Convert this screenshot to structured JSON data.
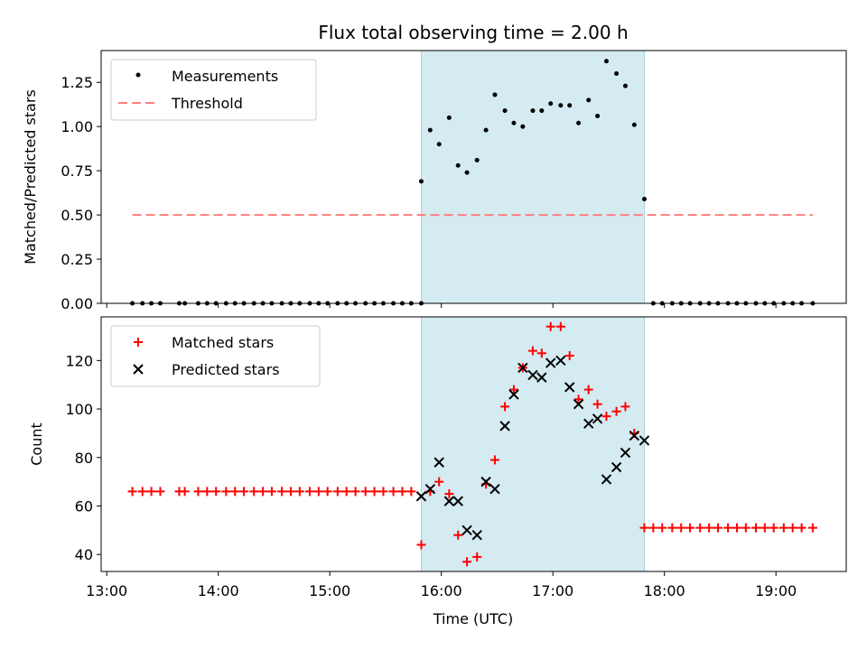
{
  "chart_data": {
    "title": "Flux total observing time = 2.00 h",
    "xlabel": "Time (UTC)",
    "x_tick_labels": [
      "13:00",
      "14:00",
      "15:00",
      "16:00",
      "17:00",
      "18:00",
      "19:00"
    ],
    "x_ticks_hours": [
      13,
      14,
      15,
      16,
      17,
      18,
      19
    ],
    "xlim_hours": [
      12.95,
      19.63
    ],
    "shaded_span_hours": [
      15.82,
      17.82
    ],
    "colors": {
      "measurements": "#000000",
      "threshold": "#ff7f7f",
      "matched": "#ff0000",
      "predicted": "#000000",
      "span_fill": "#d4ebf1",
      "span_edge": "#a6d3e0"
    },
    "top_panel": {
      "type": "scatter",
      "ylabel": "Matched/Predicted stars",
      "ylim": [
        0,
        1.43
      ],
      "y_ticks": [
        0,
        0.25,
        0.5,
        0.75,
        1.0,
        1.25
      ],
      "y_tick_labels": [
        "0.00",
        "0.25",
        "0.50",
        "0.75",
        "1.00",
        "1.25"
      ],
      "legend": {
        "placement": "top-left",
        "entries": [
          "Measurements",
          "Threshold"
        ]
      },
      "threshold": {
        "name": "Threshold",
        "y": 0.5,
        "x_range_hours": [
          13.23,
          19.33
        ]
      },
      "measurements_inside": {
        "name": "Measurements",
        "x_hours": [
          15.82,
          15.9,
          15.98,
          16.07,
          16.15,
          16.23,
          16.32,
          16.4,
          16.48,
          16.57,
          16.65,
          16.73,
          16.82,
          16.9,
          16.98,
          17.07,
          17.15,
          17.23,
          17.32,
          17.4,
          17.48,
          17.57,
          17.65,
          17.73,
          17.82
        ],
        "y": [
          0.69,
          0.98,
          0.9,
          1.05,
          0.78,
          0.74,
          0.81,
          0.98,
          1.18,
          1.09,
          1.02,
          1.0,
          1.09,
          1.09,
          1.13,
          1.12,
          1.12,
          1.02,
          1.15,
          1.06,
          1.37,
          1.3,
          1.23,
          1.01,
          0.59
        ]
      },
      "measurements_zero": {
        "y": 0,
        "x_hours": [
          13.23,
          13.32,
          13.4,
          13.48,
          13.65,
          13.7,
          13.82,
          13.9,
          13.98,
          14.07,
          14.15,
          14.23,
          14.32,
          14.4,
          14.48,
          14.57,
          14.65,
          14.73,
          14.82,
          14.9,
          14.98,
          15.07,
          15.15,
          15.23,
          15.32,
          15.4,
          15.48,
          15.57,
          15.65,
          15.73,
          15.82,
          17.9,
          17.98,
          18.07,
          18.15,
          18.23,
          18.32,
          18.4,
          18.48,
          18.57,
          18.65,
          18.73,
          18.82,
          18.9,
          18.98,
          19.07,
          19.15,
          19.23,
          19.33
        ]
      }
    },
    "bottom_panel": {
      "type": "scatter",
      "ylabel": "Count",
      "ylim": [
        33,
        138
      ],
      "y_ticks": [
        40,
        60,
        80,
        100,
        120
      ],
      "y_tick_labels": [
        "40",
        "60",
        "80",
        "100",
        "120"
      ],
      "legend": {
        "placement": "top-left",
        "entries": [
          "Matched stars",
          "Predicted stars"
        ]
      },
      "matched_before": {
        "y": 66,
        "x_hours": [
          13.23,
          13.32,
          13.4,
          13.48,
          13.65,
          13.7,
          13.82,
          13.9,
          13.98,
          14.07,
          14.15,
          14.23,
          14.32,
          14.4,
          14.48,
          14.57,
          14.65,
          14.73,
          14.82,
          14.9,
          14.98,
          15.07,
          15.15,
          15.23,
          15.32,
          15.4,
          15.48,
          15.57,
          15.65,
          15.73
        ]
      },
      "matched_inside": {
        "name": "Matched stars",
        "x_hours": [
          15.82,
          15.9,
          15.98,
          16.07,
          16.15,
          16.23,
          16.32,
          16.4,
          16.48,
          16.57,
          16.65,
          16.73,
          16.82,
          16.9,
          16.98,
          17.07,
          17.15,
          17.23,
          17.32,
          17.4,
          17.48,
          17.57,
          17.65,
          17.73
        ],
        "y": [
          44,
          66,
          70,
          65,
          48,
          37,
          39,
          69,
          79,
          101,
          108,
          117,
          124,
          123,
          134,
          134,
          122,
          104,
          108,
          102,
          97,
          99,
          101,
          90
        ]
      },
      "matched_after": {
        "y": 51,
        "x_hours": [
          17.82,
          17.9,
          17.98,
          18.07,
          18.15,
          18.23,
          18.32,
          18.4,
          18.48,
          18.57,
          18.65,
          18.73,
          18.82,
          18.9,
          18.98,
          19.07,
          19.15,
          19.23,
          19.33
        ]
      },
      "predicted": {
        "name": "Predicted stars",
        "x_hours": [
          15.82,
          15.9,
          15.98,
          16.07,
          16.15,
          16.23,
          16.32,
          16.4,
          16.48,
          16.57,
          16.65,
          16.73,
          16.82,
          16.9,
          16.98,
          17.07,
          17.15,
          17.23,
          17.32,
          17.4,
          17.48,
          17.57,
          17.65,
          17.73,
          17.82
        ],
        "y": [
          64,
          67,
          78,
          62,
          62,
          50,
          48,
          70,
          67,
          93,
          106,
          117,
          114,
          113,
          119,
          120,
          109,
          102,
          94,
          96,
          71,
          76,
          82,
          89,
          87
        ]
      }
    }
  }
}
